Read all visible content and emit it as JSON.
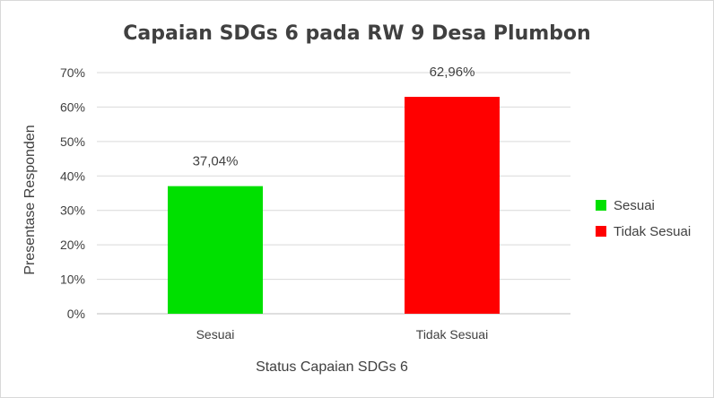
{
  "chart_data": {
    "type": "bar",
    "title": "Capaian SDGs 6 pada RW 9 Desa Plumbon",
    "xlabel": "Status Capaian SDGs 6",
    "ylabel": "Presentase Responden",
    "categories": [
      "Sesuai",
      "Tidak Sesuai"
    ],
    "series": [
      {
        "name": "Sesuai",
        "color": "#00e000",
        "values": [
          37.04,
          null
        ]
      },
      {
        "name": "Tidak Sesuai",
        "color": "#ff0000",
        "values": [
          null,
          62.96
        ]
      }
    ],
    "data_labels": [
      "37,04%",
      "62,96%"
    ],
    "ylim": [
      0,
      70
    ],
    "yticks": [
      "0%",
      "10%",
      "20%",
      "30%",
      "40%",
      "50%",
      "60%",
      "70%"
    ],
    "grid": true,
    "legend_position": "right"
  }
}
